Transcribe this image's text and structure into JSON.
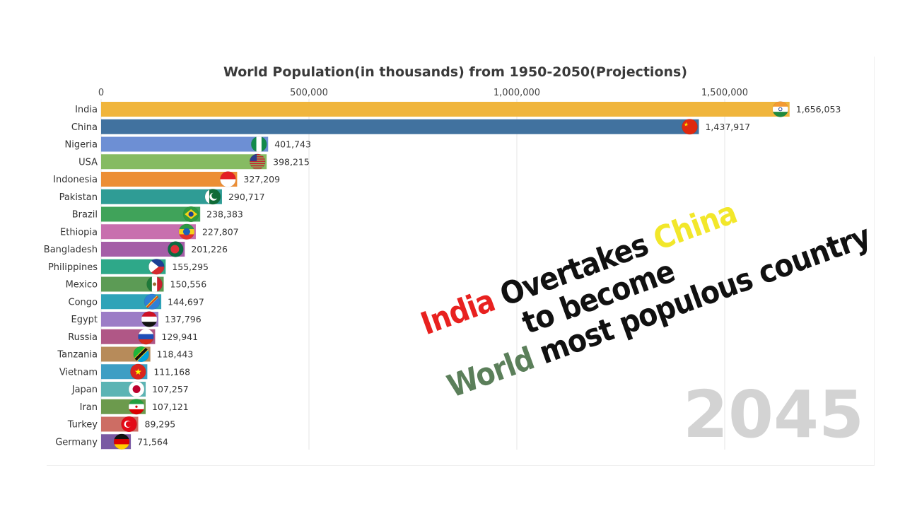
{
  "chart_data": {
    "type": "bar",
    "orientation": "horizontal",
    "title": "World Population(in thousands) from 1950-2050(Projections)",
    "xlabel": "",
    "ylabel": "",
    "xlim": [
      0,
      1850000
    ],
    "x_ticks": [
      0,
      500000,
      1000000,
      1500000
    ],
    "x_tick_labels": [
      "0",
      "500,000",
      "1,000,000",
      "1,500,000"
    ],
    "grid": true,
    "year": "2045",
    "categories": [
      "India",
      "China",
      "Nigeria",
      "USA",
      "Indonesia",
      "Pakistan",
      "Brazil",
      "Ethiopia",
      "Bangladesh",
      "Philippines",
      "Mexico",
      "Congo",
      "Egypt",
      "Russia",
      "Tanzania",
      "Vietnam",
      "Japan",
      "Iran",
      "Turkey",
      "Germany"
    ],
    "values": [
      1656053,
      1437917,
      401743,
      398215,
      327209,
      290717,
      238383,
      227807,
      201226,
      155295,
      150556,
      144697,
      137796,
      129941,
      118443,
      111168,
      107257,
      107121,
      89295,
      71564
    ],
    "value_labels": [
      "1,656,053",
      "1,437,917",
      "401,743",
      "398,215",
      "327,209",
      "290,717",
      "238,383",
      "227,807",
      "201,226",
      "155,295",
      "150,556",
      "144,697",
      "137,796",
      "129,941",
      "118,443",
      "111,168",
      "107,257",
      "107,121",
      "89,295",
      "71,564"
    ],
    "colors": [
      "#f0b53c",
      "#41729f",
      "#6d8fd4",
      "#86bb62",
      "#ec8e35",
      "#2f9c95",
      "#40a35a",
      "#c86fae",
      "#a55ea7",
      "#2ea889",
      "#5c9b55",
      "#2fa3b8",
      "#9c7dc6",
      "#b05786",
      "#b78b5a",
      "#3e9ec4",
      "#5cb4b4",
      "#6c9a4d",
      "#cd6d64",
      "#7a59a3"
    ],
    "flags": [
      "india-flag-icon",
      "china-flag-icon",
      "nigeria-flag-icon",
      "usa-flag-icon",
      "indonesia-flag-icon",
      "pakistan-flag-icon",
      "brazil-flag-icon",
      "ethiopia-flag-icon",
      "bangladesh-flag-icon",
      "philippines-flag-icon",
      "mexico-flag-icon",
      "congo-flag-icon",
      "egypt-flag-icon",
      "russia-flag-icon",
      "tanzania-flag-icon",
      "vietnam-flag-icon",
      "japan-flag-icon",
      "iran-flag-icon",
      "turkey-flag-icon",
      "germany-flag-icon"
    ]
  },
  "overlay": {
    "line1_a": "India",
    "line1_b": " Overtakes ",
    "line1_c": "China",
    "line2": "to become",
    "line3_a": "World",
    "line3_b": " most populous country",
    "colors": {
      "red": "#e8211f",
      "yellow": "#f2e72a",
      "green": "#5b7f5a",
      "black": "#111111"
    }
  }
}
